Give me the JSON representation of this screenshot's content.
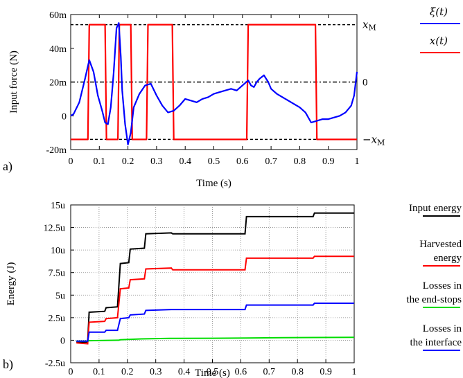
{
  "chart_data": [
    {
      "type": "line",
      "panel_label": "a)",
      "xlabel": "Time (s)",
      "ylabel": "Input force (N)",
      "xlim": [
        0,
        1
      ],
      "ylim": [
        -20,
        60
      ],
      "y_unit_suffix": "m",
      "xticks": [
        "0",
        "0.1",
        "0.2",
        "0.3",
        "0.4",
        "0.5",
        "0.6",
        "0.7",
        "0.8",
        "0.9",
        "1"
      ],
      "yticks": [
        "-20m",
        "0",
        "20m",
        "40m",
        "60m"
      ],
      "ref_lines": [
        {
          "y": 54,
          "label": "x_M",
          "label_main": "x",
          "label_sub": "M",
          "style": "dashed"
        },
        {
          "y": 20,
          "label": "0",
          "style": "dash-dot"
        },
        {
          "y": -14,
          "label": "−x_M",
          "label_main": "−x",
          "label_sub": "M",
          "style": "dashed"
        }
      ],
      "grid": false,
      "legend_position": "right",
      "series": [
        {
          "name": "ξ(t)",
          "color": "#0000ff",
          "x": [
            0,
            0.01,
            0.03,
            0.05,
            0.065,
            0.08,
            0.095,
            0.11,
            0.12,
            0.13,
            0.14,
            0.15,
            0.16,
            0.168,
            0.175,
            0.18,
            0.19,
            0.2,
            0.21,
            0.22,
            0.24,
            0.26,
            0.28,
            0.3,
            0.32,
            0.34,
            0.36,
            0.38,
            0.4,
            0.42,
            0.44,
            0.46,
            0.48,
            0.5,
            0.52,
            0.54,
            0.56,
            0.58,
            0.6,
            0.62,
            0.63,
            0.64,
            0.65,
            0.66,
            0.675,
            0.69,
            0.7,
            0.72,
            0.74,
            0.76,
            0.78,
            0.8,
            0.82,
            0.84,
            0.86,
            0.88,
            0.9,
            0.92,
            0.94,
            0.96,
            0.98,
            0.99,
            1.0
          ],
          "y": [
            0,
            1,
            8,
            22,
            33,
            26,
            12,
            3,
            -4,
            -5,
            5,
            25,
            52,
            55,
            35,
            15,
            -5,
            -17,
            -10,
            5,
            13,
            18,
            19,
            12,
            6,
            2,
            3,
            6,
            10,
            9,
            8,
            10,
            11,
            13,
            14,
            15,
            16,
            15,
            18,
            21,
            18,
            17,
            20,
            22,
            24,
            20,
            16,
            13,
            11,
            9,
            7,
            5,
            2,
            -4,
            -3,
            -2,
            -2,
            -1,
            0,
            2,
            6,
            12,
            26
          ]
        },
        {
          "name": "x(t)",
          "color": "#ff0000",
          "x": [
            0,
            0.06,
            0.065,
            0.12,
            0.125,
            0.165,
            0.17,
            0.21,
            0.215,
            0.265,
            0.27,
            0.355,
            0.36,
            0.615,
            0.62,
            0.855,
            0.86,
            1.0
          ],
          "y": [
            -14,
            -14,
            54,
            54,
            -14,
            -14,
            54,
            54,
            -14,
            -14,
            54,
            54,
            -14,
            -14,
            54,
            54,
            -14,
            -14
          ]
        }
      ]
    },
    {
      "type": "line",
      "panel_label": "b)",
      "xlabel": "Time (s)",
      "ylabel": "Energy (J)",
      "xlim": [
        0,
        1
      ],
      "ylim": [
        -2.5,
        15
      ],
      "y_unit_suffix": "u",
      "xticks": [
        "0",
        "0.1",
        "0.2",
        "0.3",
        "0.4",
        "0.5",
        "0.6",
        "0.7",
        "0.8",
        "0.9",
        "1"
      ],
      "yticks": [
        "-2.5u",
        "0",
        "2.5u",
        "5u",
        "7.5u",
        "10u",
        "12.5u",
        "15u"
      ],
      "grid": true,
      "legend_position": "right",
      "series": [
        {
          "name": "Input energy",
          "color": "#000000",
          "x": [
            0.02,
            0.06,
            0.065,
            0.12,
            0.125,
            0.165,
            0.175,
            0.205,
            0.21,
            0.26,
            0.265,
            0.355,
            0.36,
            0.615,
            0.62,
            0.855,
            0.86,
            1.0
          ],
          "y": [
            -0.2,
            -0.2,
            3.1,
            3.2,
            3.6,
            3.7,
            8.5,
            8.6,
            10.1,
            10.2,
            11.8,
            11.9,
            11.8,
            11.8,
            13.7,
            13.7,
            14.1,
            14.1
          ]
        },
        {
          "name": "Harvested energy",
          "color": "#ff0000",
          "x": [
            0.02,
            0.06,
            0.065,
            0.12,
            0.125,
            0.165,
            0.175,
            0.205,
            0.21,
            0.26,
            0.265,
            0.355,
            0.36,
            0.615,
            0.62,
            0.855,
            0.86,
            1.0
          ],
          "y": [
            -0.3,
            -0.4,
            2.0,
            2.1,
            2.4,
            2.5,
            5.7,
            5.8,
            6.7,
            6.8,
            7.9,
            8.0,
            7.8,
            7.8,
            9.1,
            9.1,
            9.3,
            9.3
          ]
        },
        {
          "name": "Losses in the end-stops",
          "color": "#00dd00",
          "x": [
            0.02,
            0.06,
            0.065,
            0.17,
            0.175,
            0.25,
            0.35,
            0.5,
            0.62,
            0.75,
            0.86,
            1.0
          ],
          "y": [
            -0.1,
            -0.1,
            -0.05,
            0.0,
            0.05,
            0.15,
            0.2,
            0.22,
            0.25,
            0.28,
            0.3,
            0.32
          ]
        },
        {
          "name": "Losses in the interface",
          "color": "#0000ff",
          "x": [
            0.02,
            0.06,
            0.065,
            0.12,
            0.125,
            0.165,
            0.175,
            0.205,
            0.21,
            0.26,
            0.265,
            0.355,
            0.36,
            0.615,
            0.62,
            0.855,
            0.86,
            1.0
          ],
          "y": [
            -0.1,
            -0.1,
            0.9,
            0.9,
            1.1,
            1.1,
            2.4,
            2.5,
            2.8,
            2.9,
            3.3,
            3.4,
            3.4,
            3.4,
            3.9,
            3.9,
            4.1,
            4.1
          ]
        }
      ],
      "legend_entries": [
        {
          "lines": [
            "Input energy"
          ],
          "color": "#000000"
        },
        {
          "lines": [
            "Harvested",
            "energy"
          ],
          "color": "#ff0000"
        },
        {
          "lines": [
            "Losses in",
            "the end-stops"
          ],
          "color": "#00dd00"
        },
        {
          "lines": [
            "Losses in",
            "the interface"
          ],
          "color": "#0000ff"
        }
      ]
    }
  ]
}
